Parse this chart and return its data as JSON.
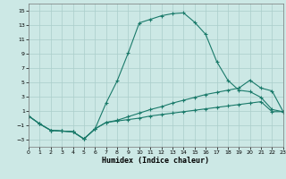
{
  "xlabel": "Humidex (Indice chaleur)",
  "bg_color": "#cce8e5",
  "grid_color": "#aaceca",
  "line_color": "#1a7a6a",
  "xlim": [
    0,
    23
  ],
  "ylim": [
    -4,
    16
  ],
  "yticks": [
    -3,
    -1,
    1,
    3,
    5,
    7,
    9,
    11,
    13,
    15
  ],
  "xticks": [
    0,
    1,
    2,
    3,
    4,
    5,
    6,
    7,
    8,
    9,
    10,
    11,
    12,
    13,
    14,
    15,
    16,
    17,
    18,
    19,
    20,
    21,
    22,
    23
  ],
  "line1_x": [
    0,
    1,
    2,
    3,
    4,
    5,
    6,
    7,
    8,
    9,
    10,
    11,
    12,
    13,
    14,
    15,
    16,
    17,
    18,
    19,
    20,
    21,
    22,
    23
  ],
  "line1_y": [
    0.3,
    -0.8,
    -1.7,
    -1.8,
    -1.9,
    -2.9,
    -1.5,
    2.1,
    5.2,
    9.1,
    13.3,
    13.8,
    14.3,
    14.6,
    14.7,
    13.4,
    11.7,
    7.9,
    5.3,
    3.9,
    3.7,
    2.9,
    1.2,
    0.9
  ],
  "line2_x": [
    0,
    1,
    2,
    3,
    4,
    5,
    6,
    7,
    8,
    9,
    10,
    11,
    12,
    13,
    14,
    15,
    16,
    17,
    18,
    19,
    20,
    21,
    22,
    23
  ],
  "line2_y": [
    0.3,
    -0.8,
    -1.7,
    -1.8,
    -1.9,
    -2.9,
    -1.5,
    -0.6,
    -0.3,
    0.2,
    0.7,
    1.2,
    1.6,
    2.1,
    2.5,
    2.9,
    3.3,
    3.6,
    3.9,
    4.2,
    5.3,
    4.2,
    3.8,
    0.9
  ],
  "line3_x": [
    0,
    1,
    2,
    3,
    4,
    5,
    6,
    7,
    8,
    9,
    10,
    11,
    12,
    13,
    14,
    15,
    16,
    17,
    18,
    19,
    20,
    21,
    22,
    23
  ],
  "line3_y": [
    0.3,
    -0.8,
    -1.7,
    -1.8,
    -1.9,
    -2.9,
    -1.5,
    -0.6,
    -0.4,
    -0.2,
    0.0,
    0.3,
    0.5,
    0.7,
    0.9,
    1.1,
    1.3,
    1.5,
    1.7,
    1.9,
    2.1,
    2.3,
    0.9,
    0.9
  ]
}
